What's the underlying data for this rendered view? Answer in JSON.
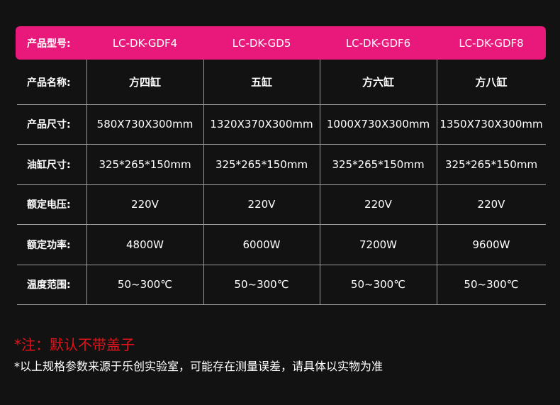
{
  "header": {
    "label": "产品型号:",
    "models": [
      "LC-DK-GDF4",
      "LC-DK-GD5",
      "LC-DK-GDF6",
      "LC-DK-GDF8"
    ]
  },
  "rows": [
    {
      "label": "产品名称:",
      "values": [
        "方四缸",
        "五缸",
        "方六缸",
        "方八缸"
      ]
    },
    {
      "label": "产品尺寸:",
      "values": [
        "580X730X300mm",
        "1320X370X300mm",
        "1000X730X300mm",
        "1350X730X300mm"
      ]
    },
    {
      "label": "油缸尺寸:",
      "values": [
        "325*265*150mm",
        "325*265*150mm",
        "325*265*150mm",
        "325*265*150mm"
      ]
    },
    {
      "label": "额定电压:",
      "values": [
        "220V",
        "220V",
        "220V",
        "220V"
      ]
    },
    {
      "label": "额定功率:",
      "values": [
        "4800W",
        "6000W",
        "7200W",
        "9600W"
      ]
    },
    {
      "label": "温度范围:",
      "values": [
        "50~300℃",
        "50~300℃",
        "50~300℃",
        "50~300℃"
      ]
    }
  ],
  "notes": {
    "warning": "*注：默认不带盖子",
    "disclaimer": "*以上规格参数来源于乐创实验室，可能存在测量误差，请具体以实物为准"
  },
  "colors": {
    "accent": "#e8197a",
    "warning": "#e0141c",
    "background": "#121212"
  }
}
